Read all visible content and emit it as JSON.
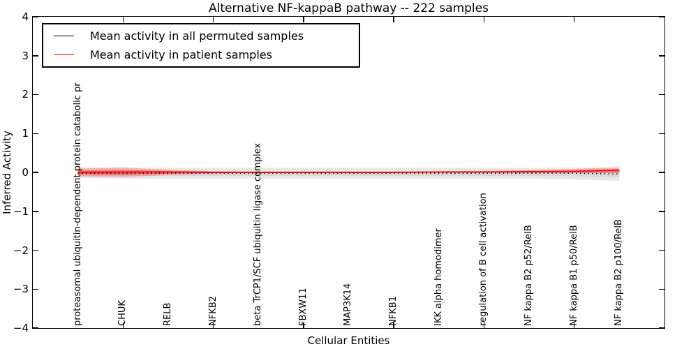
{
  "figure": {
    "title": "Alternative NF-kappaB pathway -- 222 samples"
  },
  "legend": {
    "items": [
      {
        "label": "Mean activity in all permuted samples",
        "color": "#000000"
      },
      {
        "label": "Mean activity in patient samples",
        "color": "#ff0000"
      }
    ]
  },
  "chart_data": {
    "type": "line",
    "title": "Alternative NF-kappaB pathway -- 222 samples",
    "xlabel": "Cellular Entities",
    "ylabel": "Inferred Activity",
    "ylim": [
      -4,
      4
    ],
    "yticks": [
      4,
      3,
      2,
      1,
      0,
      -1,
      -2,
      -3,
      -4
    ],
    "ytick_labels": [
      "4",
      "3",
      "2",
      "1",
      "0",
      "−1",
      "−2",
      "−3",
      "−4"
    ],
    "grid": false,
    "legend_position": "upper left",
    "categories": [
      "proteasomal ubiquitin-dependent protein catabolic pr",
      "CHUK",
      "RELB",
      "NFKB2",
      "beta TrCP1/SCF ubiquitin ligase complex",
      "FBXW11",
      "MAP3K14",
      "NFKB1",
      "IKK alpha homodimer",
      "regulation of B cell activation",
      "NF kappa B2 p52/RelB",
      "NF kappa B1 p50/RelB",
      "NF kappa B2 p100/RelB"
    ],
    "series": [
      {
        "name": "Mean activity in all permuted samples",
        "color": "#000000",
        "style": "dotted",
        "values": [
          -0.02,
          -0.02,
          -0.02,
          -0.02,
          -0.02,
          -0.02,
          -0.02,
          -0.02,
          -0.02,
          -0.02,
          -0.02,
          -0.02,
          -0.04
        ]
      },
      {
        "name": "Mean activity in patient samples",
        "color": "#ff0000",
        "style": "solid",
        "values": [
          0.0,
          0.01,
          0.01,
          0.0,
          0.0,
          0.0,
          0.0,
          0.0,
          0.01,
          0.01,
          0.02,
          0.03,
          0.06
        ]
      }
    ],
    "bands": [
      {
        "name": "permuted-samples-range",
        "color": "#e8e8e8",
        "upper": [
          0.13,
          0.13,
          0.12,
          0.12,
          0.12,
          0.12,
          0.12,
          0.12,
          0.12,
          0.12,
          0.12,
          0.12,
          0.1
        ],
        "lower": [
          -0.14,
          -0.16,
          -0.16,
          -0.16,
          -0.16,
          -0.16,
          -0.16,
          -0.16,
          -0.16,
          -0.16,
          -0.16,
          -0.18,
          -0.22
        ]
      },
      {
        "name": "permuted-samples-core",
        "color": "#d9d9d9",
        "upper": [
          0.03,
          0.03,
          0.03,
          0.03,
          0.03,
          0.03,
          0.03,
          0.03,
          0.03,
          0.03,
          0.03,
          0.03,
          0.02
        ],
        "lower": [
          -0.09,
          -0.09,
          -0.09,
          -0.09,
          -0.09,
          -0.09,
          -0.09,
          -0.09,
          -0.09,
          -0.09,
          -0.09,
          -0.1,
          -0.13
        ]
      },
      {
        "name": "patient-samples-range",
        "color": "rgba(255,0,0,0.22)",
        "upper": [
          0.1,
          0.12,
          0.07,
          0.03,
          0.02,
          0.02,
          0.02,
          0.02,
          0.03,
          0.04,
          0.06,
          0.09,
          0.14
        ],
        "lower": [
          -0.1,
          -0.12,
          -0.07,
          -0.03,
          -0.01,
          -0.01,
          -0.01,
          -0.01,
          -0.01,
          -0.01,
          -0.01,
          -0.01,
          -0.02
        ]
      },
      {
        "name": "patient-samples-core",
        "color": "rgba(255,0,0,0.38)",
        "upper": [
          0.05,
          0.06,
          0.04,
          0.02,
          0.02,
          0.02,
          0.02,
          0.02,
          0.02,
          0.02,
          0.03,
          0.04,
          0.08
        ],
        "lower": [
          -0.05,
          -0.06,
          -0.03,
          -0.01,
          -0.01,
          -0.01,
          -0.01,
          -0.01,
          -0.01,
          -0.01,
          -0.01,
          -0.01,
          0.0
        ]
      }
    ]
  }
}
